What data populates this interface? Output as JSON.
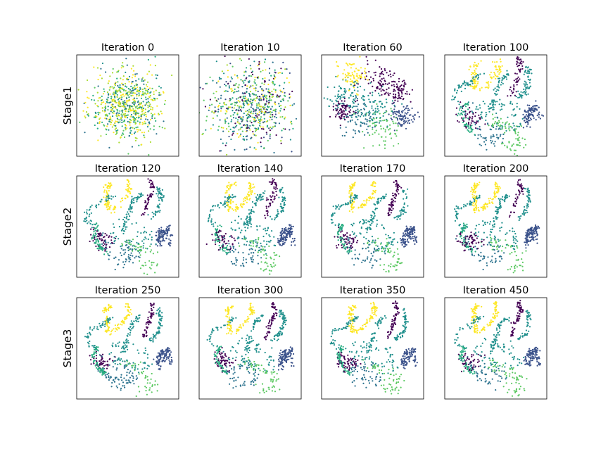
{
  "figure": {
    "row_labels": [
      "Stage1",
      "Stage2",
      "Stage3"
    ],
    "panel_titles": [
      [
        "Iteration 0",
        "Iteration 10",
        "Iteration 60",
        "Iteration 100"
      ],
      [
        "Iteration 120",
        "Iteration 140",
        "Iteration 170",
        "Iteration 200"
      ],
      [
        "Iteration 250",
        "Iteration 300",
        "Iteration 350",
        "Iteration 450"
      ]
    ],
    "palette": [
      "#440154",
      "#3b528b",
      "#21908d",
      "#5dc963",
      "#fde725",
      "#2c728e",
      "#27ad81",
      "#aadc32"
    ]
  },
  "chart_data": {
    "type": "scatter",
    "layout": "3x4 small-multiples grid",
    "panels": [
      {
        "row": "Stage1",
        "title": "Iteration 0",
        "structure": "random-ball"
      },
      {
        "row": "Stage1",
        "title": "Iteration 10",
        "structure": "random-ball"
      },
      {
        "row": "Stage1",
        "title": "Iteration 60",
        "structure": "partially-clustered"
      },
      {
        "row": "Stage1",
        "title": "Iteration 100",
        "structure": "trajectories"
      },
      {
        "row": "Stage2",
        "title": "Iteration 120",
        "structure": "trajectories"
      },
      {
        "row": "Stage2",
        "title": "Iteration 140",
        "structure": "trajectories"
      },
      {
        "row": "Stage2",
        "title": "Iteration 170",
        "structure": "trajectories"
      },
      {
        "row": "Stage2",
        "title": "Iteration 200",
        "structure": "trajectories"
      },
      {
        "row": "Stage3",
        "title": "Iteration 250",
        "structure": "trajectories"
      },
      {
        "row": "Stage3",
        "title": "Iteration 300",
        "structure": "trajectories"
      },
      {
        "row": "Stage3",
        "title": "Iteration 350",
        "structure": "trajectories"
      },
      {
        "row": "Stage3",
        "title": "Iteration 450",
        "structure": "trajectories"
      }
    ],
    "xticks": [],
    "yticks": [],
    "xlabel": "",
    "ylabel": "",
    "grid": false,
    "legend": "none"
  }
}
